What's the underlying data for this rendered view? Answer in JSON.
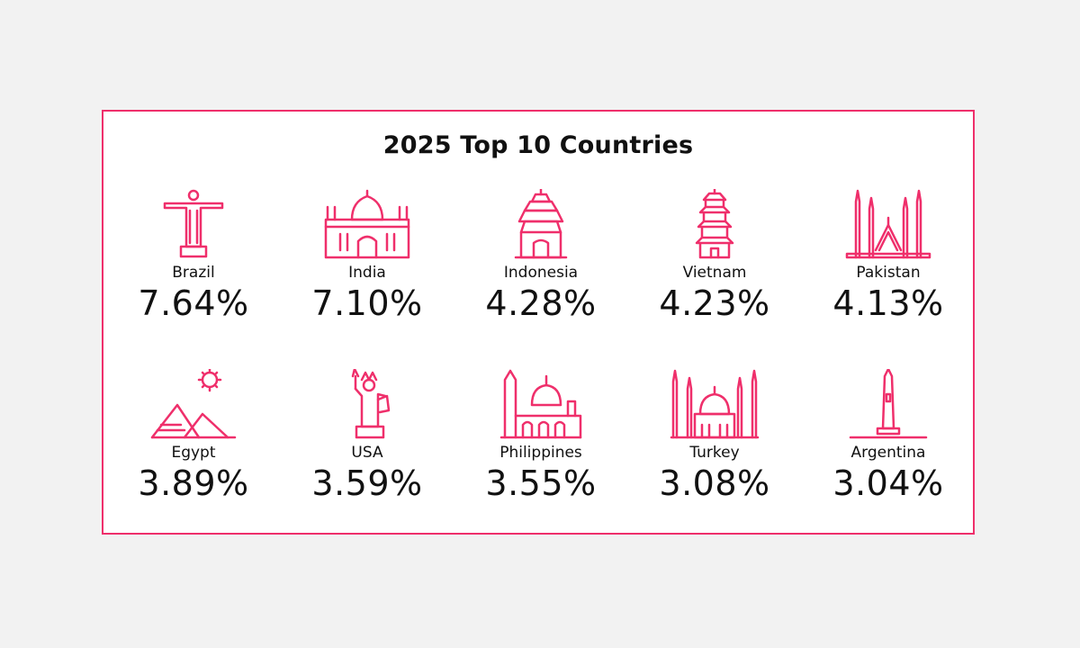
{
  "title": "2025 Top 10 Countries",
  "accent_color": "#ef2f6b",
  "countries": [
    {
      "name": "Brazil",
      "percent": "7.64%",
      "icon": "christ-redeemer-icon"
    },
    {
      "name": "India",
      "percent": "7.10%",
      "icon": "taj-mahal-icon"
    },
    {
      "name": "Indonesia",
      "percent": "4.28%",
      "icon": "temple-icon"
    },
    {
      "name": "Vietnam",
      "percent": "4.23%",
      "icon": "pagoda-icon"
    },
    {
      "name": "Pakistan",
      "percent": "4.13%",
      "icon": "mosque-minarets-icon"
    },
    {
      "name": "Egypt",
      "percent": "3.89%",
      "icon": "pyramids-sun-icon"
    },
    {
      "name": "USA",
      "percent": "3.59%",
      "icon": "statue-of-liberty-icon"
    },
    {
      "name": "Philippines",
      "percent": "3.55%",
      "icon": "cathedral-icon"
    },
    {
      "name": "Turkey",
      "percent": "3.08%",
      "icon": "blue-mosque-icon"
    },
    {
      "name": "Argentina",
      "percent": "3.04%",
      "icon": "obelisk-icon"
    }
  ]
}
